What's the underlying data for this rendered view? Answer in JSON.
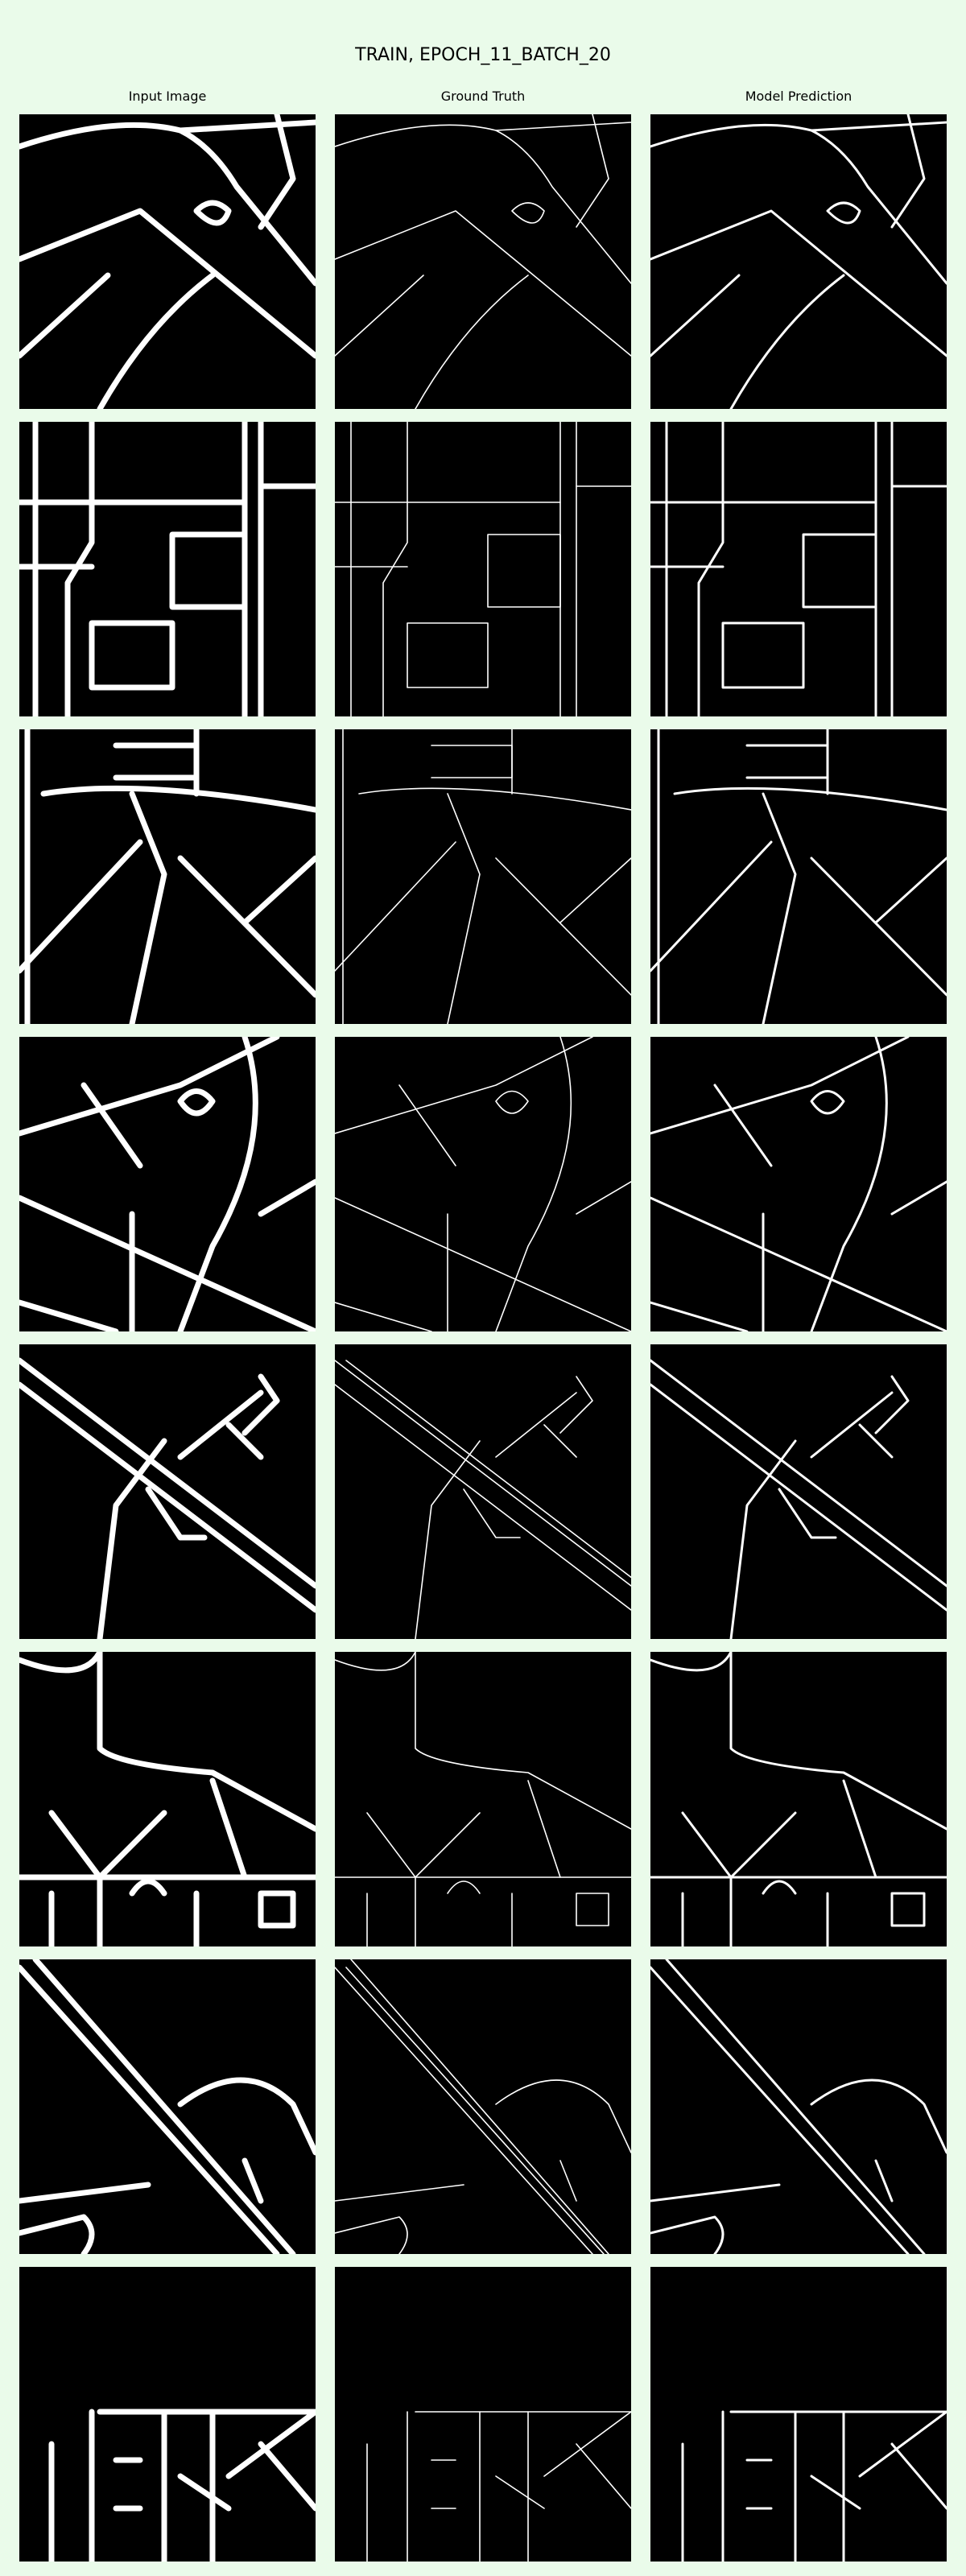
{
  "title": "TRAIN, EPOCH_11_BATCH_20",
  "columns": [
    "Input Image",
    "Ground Truth",
    "Model Prediction"
  ],
  "colors": {
    "background": "#eafbea",
    "panel": "#000000",
    "road": "#ffffff"
  },
  "rows": 8
}
